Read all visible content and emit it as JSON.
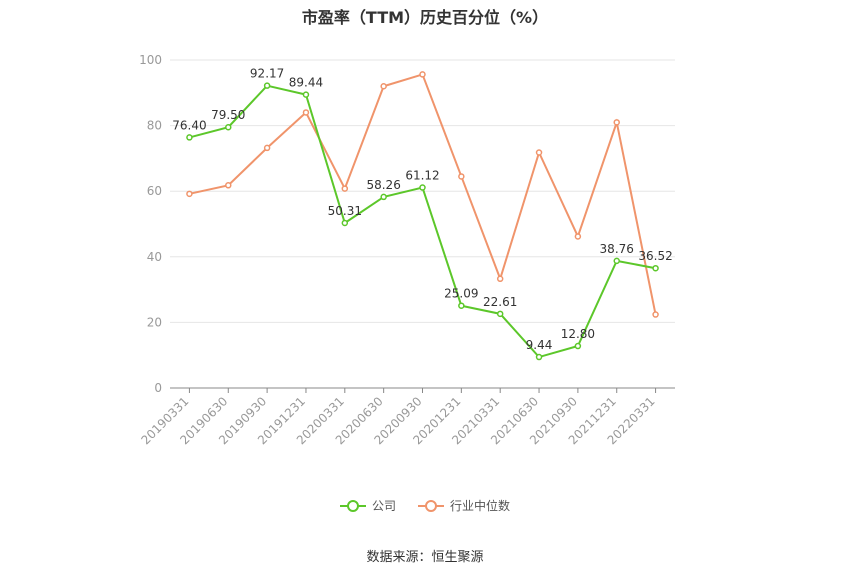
{
  "chart_data": {
    "type": "line",
    "title": "市盈率（TTM）历史百分位（%）",
    "categories": [
      "20190331",
      "20190630",
      "20190930",
      "20191231",
      "20200331",
      "20200630",
      "20200930",
      "20201231",
      "20210331",
      "20210630",
      "20210930",
      "20211231",
      "20220331"
    ],
    "ylim": [
      0,
      100
    ],
    "yticks": [
      0,
      20,
      40,
      60,
      80,
      100
    ],
    "grid": true,
    "legend_position": "bottom",
    "series": [
      {
        "name": "公司",
        "color": "#5cc72a",
        "values": [
          76.4,
          79.5,
          92.17,
          89.44,
          50.31,
          58.26,
          61.12,
          25.09,
          22.61,
          9.44,
          12.8,
          38.76,
          36.52
        ],
        "labels": [
          "76.40",
          "79.50",
          "92.17",
          "89.44",
          "50.31",
          "58.26",
          "61.12",
          "25.09",
          "22.61",
          "9.44",
          "12.80",
          "38.76",
          "36.52"
        ]
      },
      {
        "name": "行业中位数",
        "color": "#f0946b",
        "values": [
          59.2,
          61.8,
          73.2,
          84.0,
          60.8,
          92.0,
          95.6,
          64.5,
          33.3,
          71.8,
          46.2,
          81.0,
          22.4
        ]
      }
    ]
  },
  "source": "数据来源：恒生聚源"
}
